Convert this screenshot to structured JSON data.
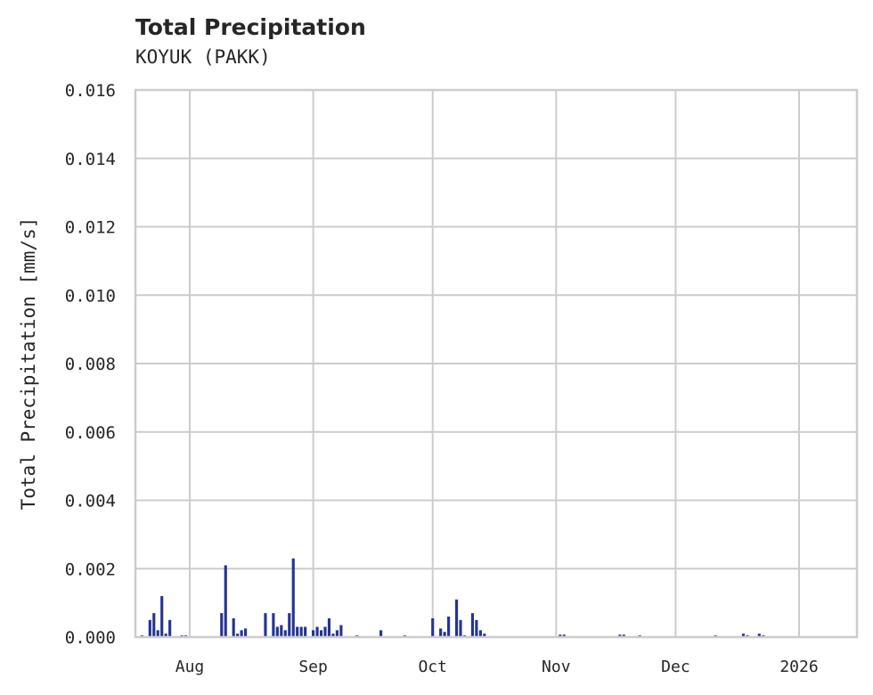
{
  "header": {
    "title": "Total Precipitation",
    "subtitle": "KOYUK (PAKK)"
  },
  "colors": {
    "bar": "#233494",
    "grid": "#cccccc",
    "text": "#262626"
  },
  "chart_data": {
    "type": "bar",
    "title": "Total Precipitation",
    "subtitle": "KOYUK (PAKK)",
    "xlabel": "",
    "ylabel": "Total Precipitation [mm/s]",
    "ylim": [
      0.0,
      0.016
    ],
    "yticks": [
      "0.000",
      "0.002",
      "0.004",
      "0.006",
      "0.008",
      "0.010",
      "0.012",
      "0.014",
      "0.016"
    ],
    "xticks": [
      "Aug",
      "Sep",
      "Oct",
      "Nov",
      "Dec",
      "2026"
    ],
    "grid": true,
    "legend": "none",
    "series": [
      {
        "name": "Total Precipitation",
        "points": [
          {
            "x": "2025-07-20",
            "y": 5e-05
          },
          {
            "x": "2025-07-22",
            "y": 0.0005
          },
          {
            "x": "2025-07-23",
            "y": 0.0007
          },
          {
            "x": "2025-07-24",
            "y": 0.0002
          },
          {
            "x": "2025-07-25",
            "y": 0.0012
          },
          {
            "x": "2025-07-26",
            "y": 0.0001
          },
          {
            "x": "2025-07-27",
            "y": 0.0005
          },
          {
            "x": "2025-07-30",
            "y": 5e-05
          },
          {
            "x": "2025-07-31",
            "y": 5e-05
          },
          {
            "x": "2025-08-09",
            "y": 0.0007
          },
          {
            "x": "2025-08-10",
            "y": 0.0021
          },
          {
            "x": "2025-08-12",
            "y": 0.00055
          },
          {
            "x": "2025-08-13",
            "y": 0.0001
          },
          {
            "x": "2025-08-14",
            "y": 0.0002
          },
          {
            "x": "2025-08-15",
            "y": 0.00025
          },
          {
            "x": "2025-08-20",
            "y": 0.0007
          },
          {
            "x": "2025-08-22",
            "y": 0.0007
          },
          {
            "x": "2025-08-23",
            "y": 0.0003
          },
          {
            "x": "2025-08-24",
            "y": 0.00035
          },
          {
            "x": "2025-08-25",
            "y": 0.0002
          },
          {
            "x": "2025-08-26",
            "y": 0.0007
          },
          {
            "x": "2025-08-27",
            "y": 0.0023
          },
          {
            "x": "2025-08-28",
            "y": 0.0003
          },
          {
            "x": "2025-08-29",
            "y": 0.0003
          },
          {
            "x": "2025-08-30",
            "y": 0.0003
          },
          {
            "x": "2025-09-01",
            "y": 0.0002
          },
          {
            "x": "2025-09-02",
            "y": 0.0003
          },
          {
            "x": "2025-09-03",
            "y": 0.0002
          },
          {
            "x": "2025-09-04",
            "y": 0.0003
          },
          {
            "x": "2025-09-05",
            "y": 0.00055
          },
          {
            "x": "2025-09-06",
            "y": 0.0001
          },
          {
            "x": "2025-09-07",
            "y": 0.0002
          },
          {
            "x": "2025-09-08",
            "y": 0.00035
          },
          {
            "x": "2025-09-12",
            "y": 5e-05
          },
          {
            "x": "2025-09-18",
            "y": 0.0002
          },
          {
            "x": "2025-09-24",
            "y": 5e-05
          },
          {
            "x": "2025-10-01",
            "y": 0.00055
          },
          {
            "x": "2025-10-03",
            "y": 0.00025
          },
          {
            "x": "2025-10-04",
            "y": 0.00015
          },
          {
            "x": "2025-10-05",
            "y": 0.0006
          },
          {
            "x": "2025-10-07",
            "y": 0.0011
          },
          {
            "x": "2025-10-08",
            "y": 0.0005
          },
          {
            "x": "2025-10-09",
            "y": 5e-05
          },
          {
            "x": "2025-10-11",
            "y": 0.0007
          },
          {
            "x": "2025-10-12",
            "y": 0.0005
          },
          {
            "x": "2025-10-13",
            "y": 0.0002
          },
          {
            "x": "2025-10-14",
            "y": 0.0001
          },
          {
            "x": "2025-11-02",
            "y": 7e-05
          },
          {
            "x": "2025-11-03",
            "y": 7e-05
          },
          {
            "x": "2025-11-17",
            "y": 7e-05
          },
          {
            "x": "2025-11-18",
            "y": 7e-05
          },
          {
            "x": "2025-11-22",
            "y": 5e-05
          },
          {
            "x": "2025-12-11",
            "y": 5e-05
          },
          {
            "x": "2025-12-18",
            "y": 0.0001
          },
          {
            "x": "2025-12-19",
            "y": 5e-05
          },
          {
            "x": "2025-12-22",
            "y": 0.0001
          },
          {
            "x": "2025-12-23",
            "y": 5e-05
          }
        ]
      }
    ]
  }
}
